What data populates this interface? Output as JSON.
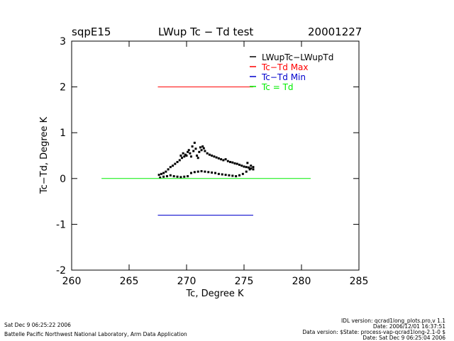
{
  "header": {
    "site": "sqpE15",
    "title": "LWup Tc − Td test",
    "date": "20001227"
  },
  "footer": {
    "left_line1": "Sat Dec  9 06:25:22 2006",
    "left_line2": "Battelle Pacific Northwest National Laboratory, Arm Data Application",
    "right_line1": "IDL version: qcrad1long_plots.pro,v 1.1",
    "right_line2": "Date: 2006/12/01 16:37:51",
    "right_line3": "Data version: $State: process-vap-qcrad1long-2.1-0 $",
    "right_line4": "Date: Sat Dec  9 06:25:04 2006"
  },
  "colors": {
    "data": "#000000",
    "max": "#ff0000",
    "min": "#0000cc",
    "zero": "#00ee00"
  },
  "chart_data": {
    "type": "scatter",
    "xlabel": "Tc, Degree K",
    "ylabel": "Tc−Td, Degree K",
    "xlim": [
      260,
      285
    ],
    "ylim": [
      -2,
      3
    ],
    "xticks": [
      260,
      265,
      270,
      275,
      280,
      285
    ],
    "yticks": [
      -2,
      -1,
      0,
      1,
      2,
      3
    ],
    "legend": [
      "LWupTc−LWupTd",
      "Tc−Td Max",
      "Tc−Td Min",
      "Tc = Td"
    ],
    "legend_position": "top-right",
    "series": [
      {
        "name": "LWupTc−LWupTd",
        "style": "points",
        "points": [
          [
            267.6,
            0.08
          ],
          [
            267.8,
            0.1
          ],
          [
            268.0,
            0.12
          ],
          [
            268.2,
            0.15
          ],
          [
            268.4,
            0.2
          ],
          [
            268.6,
            0.25
          ],
          [
            268.8,
            0.28
          ],
          [
            269.0,
            0.32
          ],
          [
            269.2,
            0.36
          ],
          [
            269.4,
            0.4
          ],
          [
            269.5,
            0.5
          ],
          [
            269.6,
            0.45
          ],
          [
            269.7,
            0.55
          ],
          [
            269.8,
            0.48
          ],
          [
            269.9,
            0.52
          ],
          [
            270.0,
            0.5
          ],
          [
            270.1,
            0.58
          ],
          [
            270.2,
            0.62
          ],
          [
            270.3,
            0.55
          ],
          [
            270.4,
            0.48
          ],
          [
            270.5,
            0.7
          ],
          [
            270.6,
            0.6
          ],
          [
            270.7,
            0.78
          ],
          [
            270.8,
            0.65
          ],
          [
            270.9,
            0.5
          ],
          [
            271.0,
            0.45
          ],
          [
            271.1,
            0.58
          ],
          [
            271.2,
            0.68
          ],
          [
            271.3,
            0.62
          ],
          [
            271.4,
            0.7
          ],
          [
            271.5,
            0.66
          ],
          [
            271.6,
            0.6
          ],
          [
            271.8,
            0.55
          ],
          [
            272.0,
            0.52
          ],
          [
            272.2,
            0.5
          ],
          [
            272.4,
            0.48
          ],
          [
            272.6,
            0.46
          ],
          [
            272.8,
            0.44
          ],
          [
            273.0,
            0.42
          ],
          [
            273.2,
            0.4
          ],
          [
            273.4,
            0.42
          ],
          [
            273.6,
            0.38
          ],
          [
            273.8,
            0.36
          ],
          [
            274.0,
            0.35
          ],
          [
            274.2,
            0.33
          ],
          [
            274.4,
            0.32
          ],
          [
            274.6,
            0.3
          ],
          [
            274.8,
            0.28
          ],
          [
            275.0,
            0.26
          ],
          [
            275.2,
            0.25
          ],
          [
            275.4,
            0.24
          ],
          [
            275.6,
            0.22
          ],
          [
            275.8,
            0.2
          ],
          [
            275.6,
            0.28
          ],
          [
            275.3,
            0.34
          ],
          [
            267.7,
            0.02
          ],
          [
            268.0,
            0.04
          ],
          [
            268.3,
            0.05
          ],
          [
            268.6,
            0.07
          ],
          [
            268.9,
            0.05
          ],
          [
            269.2,
            0.04
          ],
          [
            269.5,
            0.03
          ],
          [
            269.8,
            0.04
          ],
          [
            270.1,
            0.05
          ],
          [
            270.4,
            0.12
          ],
          [
            270.7,
            0.14
          ],
          [
            271.0,
            0.15
          ],
          [
            271.3,
            0.16
          ],
          [
            271.6,
            0.15
          ],
          [
            271.9,
            0.14
          ],
          [
            272.2,
            0.13
          ],
          [
            272.5,
            0.12
          ],
          [
            272.8,
            0.1
          ],
          [
            273.1,
            0.09
          ],
          [
            273.4,
            0.08
          ],
          [
            273.7,
            0.07
          ],
          [
            274.0,
            0.06
          ],
          [
            274.3,
            0.05
          ],
          [
            274.6,
            0.07
          ],
          [
            274.9,
            0.1
          ],
          [
            275.2,
            0.15
          ],
          [
            275.5,
            0.2
          ],
          [
            275.8,
            0.25
          ]
        ]
      },
      {
        "name": "Tc−Td Max",
        "style": "line",
        "x": [
          267.5,
          275.8
        ],
        "y": [
          2.0,
          2.0
        ]
      },
      {
        "name": "Tc−Td Min",
        "style": "line",
        "x": [
          267.5,
          275.8
        ],
        "y": [
          -0.8,
          -0.8
        ]
      },
      {
        "name": "Tc = Td",
        "style": "line",
        "x": [
          262.6,
          280.8
        ],
        "y": [
          0.0,
          0.0
        ]
      }
    ]
  }
}
